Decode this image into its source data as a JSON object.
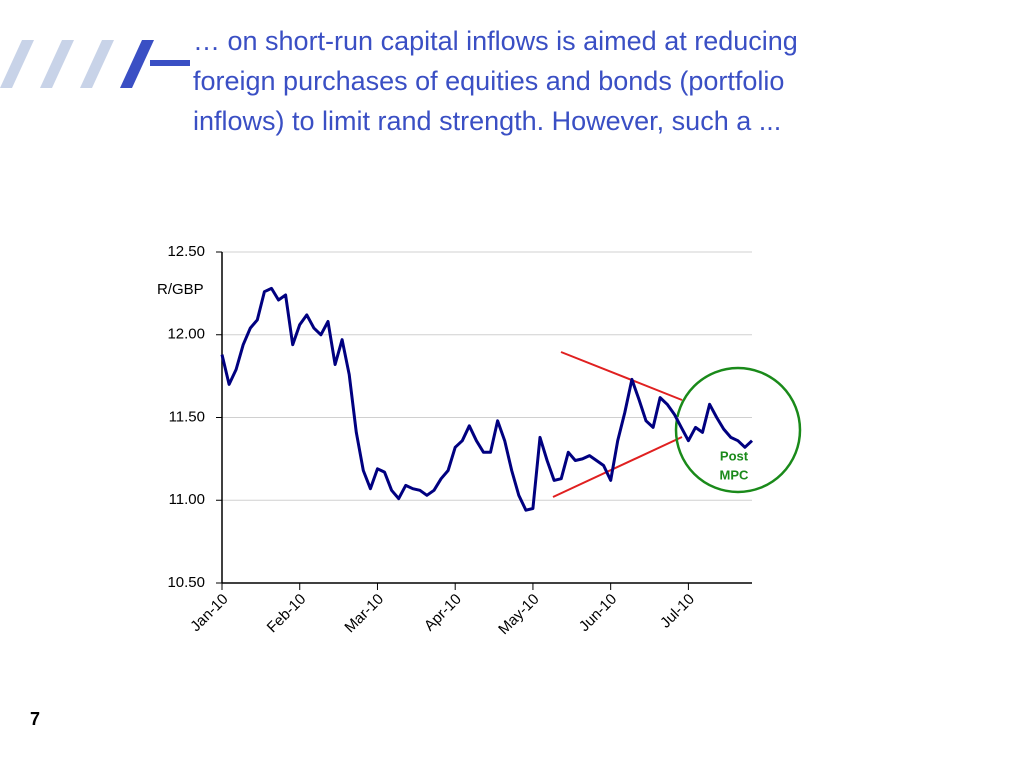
{
  "slide": {
    "heading": [
      "… on short-run capital inflows is aimed at reducing",
      "foreign purchases of equities and bonds (portfolio",
      "inflows) to limit rand strength. However, such a ..."
    ],
    "page_number": "7"
  },
  "chart_data": {
    "type": "line",
    "y_label": "R/GBP",
    "annotation": [
      "Post",
      "MPC"
    ],
    "categories": [
      "Jan-10",
      null,
      null,
      null,
      null,
      null,
      null,
      null,
      null,
      null,
      null,
      "Feb-10",
      null,
      null,
      null,
      null,
      null,
      null,
      null,
      null,
      null,
      null,
      "Mar-10",
      null,
      null,
      null,
      null,
      null,
      null,
      null,
      null,
      null,
      null,
      "Apr-10",
      null,
      null,
      null,
      null,
      null,
      null,
      null,
      null,
      null,
      null,
      "May-10",
      null,
      null,
      null,
      null,
      null,
      null,
      null,
      null,
      null,
      null,
      "Jun-10",
      null,
      null,
      null,
      null,
      null,
      null,
      null,
      null,
      null,
      null,
      "Jul-10",
      null,
      null,
      null,
      null,
      null,
      null,
      null,
      null,
      null
    ],
    "values": [
      11.88,
      11.7,
      11.79,
      11.94,
      12.04,
      12.09,
      12.26,
      12.28,
      12.21,
      12.24,
      11.94,
      12.06,
      12.12,
      12.04,
      12.0,
      12.08,
      11.82,
      11.97,
      11.76,
      11.41,
      11.18,
      11.07,
      11.19,
      11.17,
      11.06,
      11.01,
      11.09,
      11.07,
      11.06,
      11.03,
      11.06,
      11.13,
      11.18,
      11.32,
      11.36,
      11.45,
      11.36,
      11.29,
      11.29,
      11.48,
      11.36,
      11.18,
      11.03,
      10.94,
      10.95,
      11.38,
      11.24,
      11.12,
      11.13,
      11.29,
      11.24,
      11.25,
      11.27,
      11.24,
      11.21,
      11.12,
      11.36,
      11.53,
      11.73,
      11.61,
      11.48,
      11.44,
      11.62,
      11.58,
      11.52,
      11.44,
      11.36,
      11.44,
      11.41,
      11.58,
      11.5,
      11.43,
      11.38,
      11.36,
      11.32,
      11.36
    ],
    "color": "#000080",
    "ylim": [
      10.5,
      12.5
    ],
    "yticks": [
      {
        "value": 10.5,
        "label": "10.50"
      },
      {
        "value": 11,
        "label": "11.00"
      },
      {
        "value": 11.5,
        "label": "11.50"
      },
      {
        "value": 12,
        "label": "12.00"
      },
      {
        "value": 12.5,
        "label": "12.50"
      }
    ],
    "grid": true
  }
}
